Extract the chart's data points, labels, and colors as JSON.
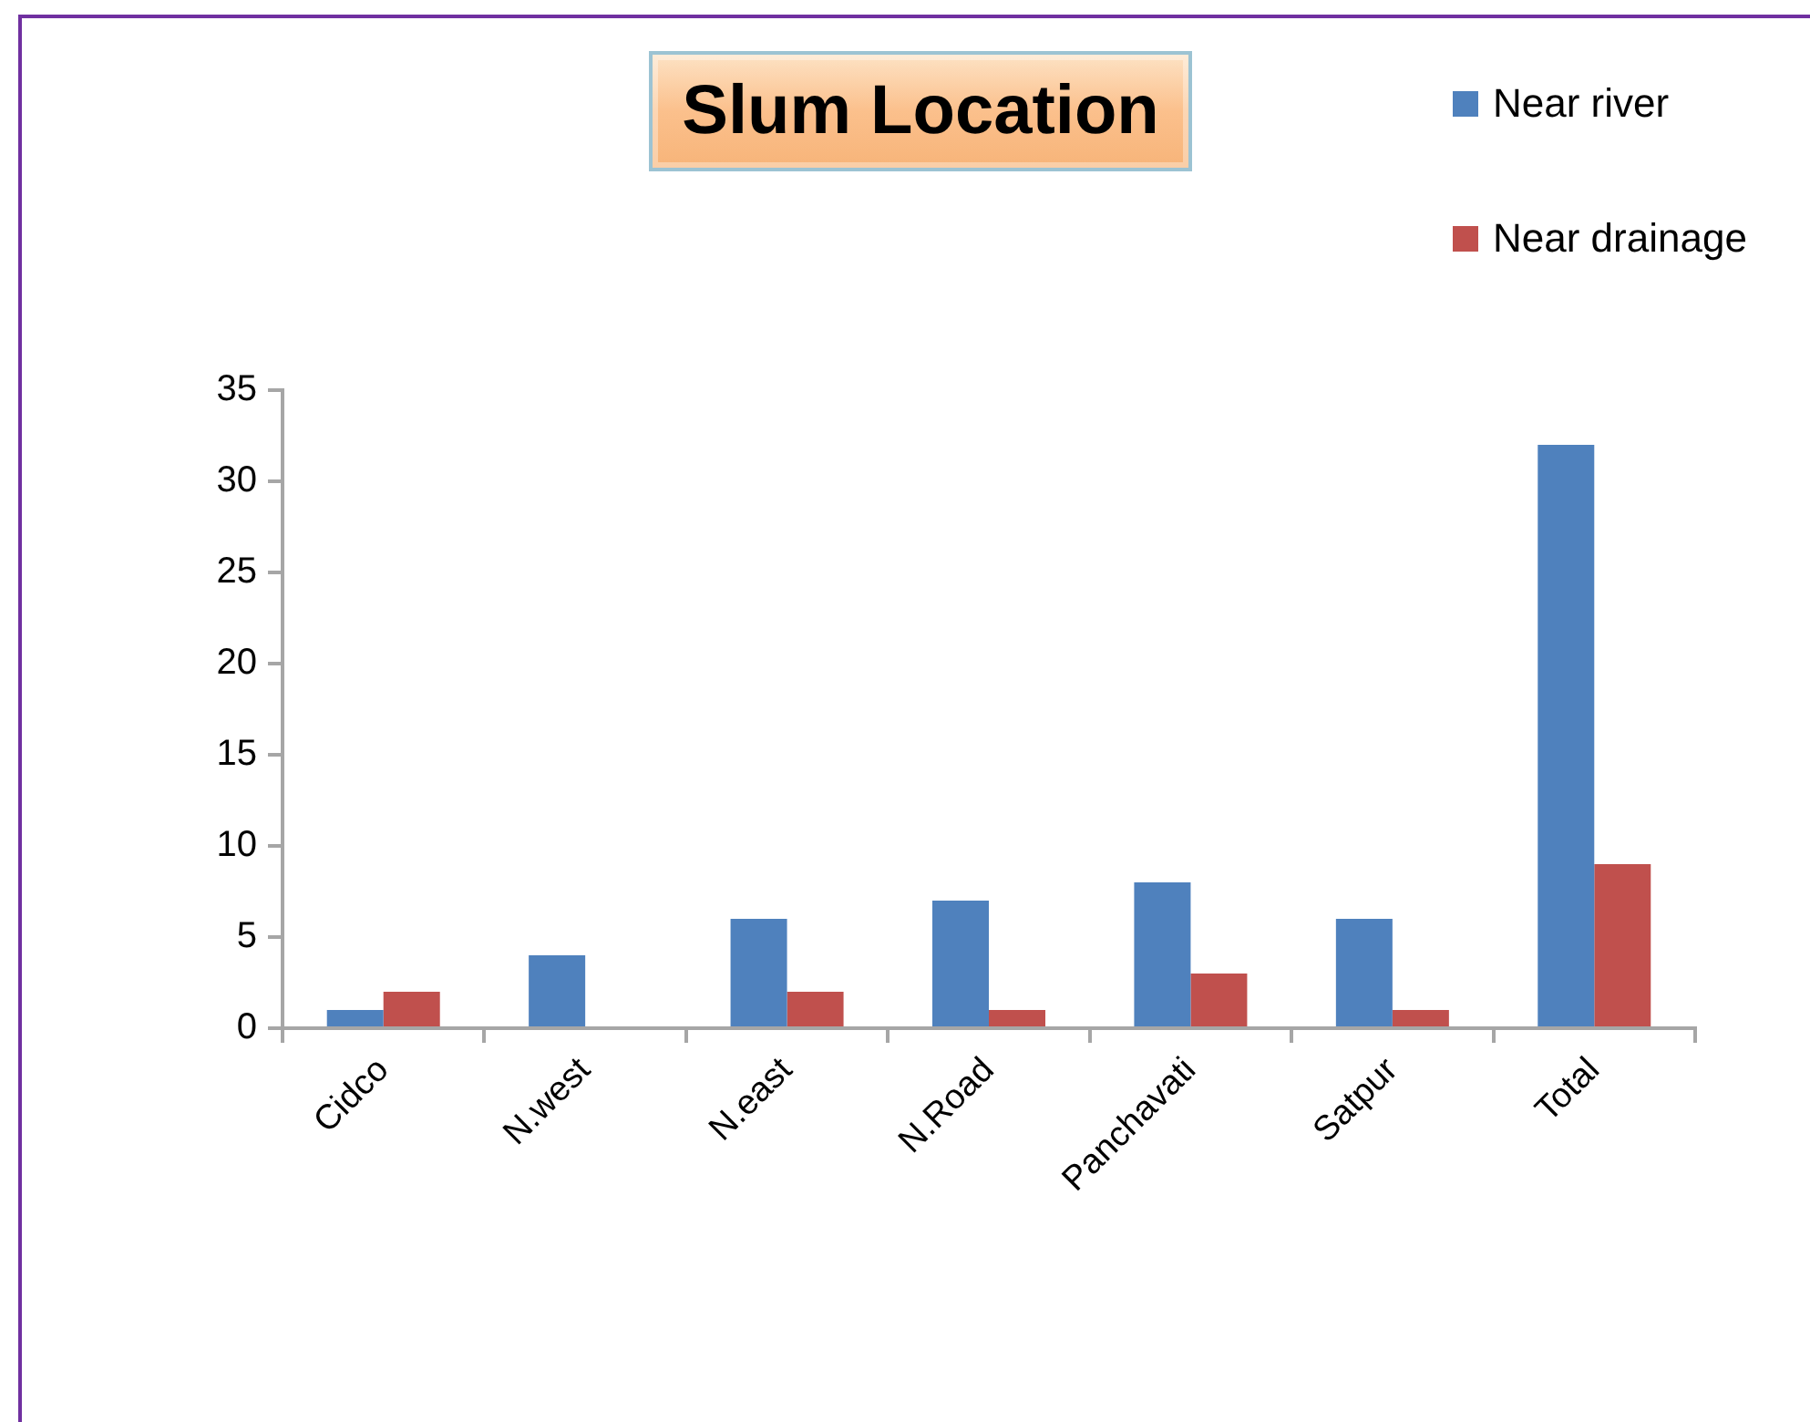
{
  "chart_data": {
    "type": "bar",
    "title": "Slum Location",
    "categories": [
      "Cidco",
      "N.west",
      "N.east",
      "N.Road",
      "Panchavati",
      "Satpur",
      "Total"
    ],
    "series": [
      {
        "name": "Near river",
        "color": "#4f81bd",
        "values": [
          1,
          4,
          6,
          7,
          8,
          6,
          32
        ]
      },
      {
        "name": "Near drainage",
        "color": "#c0504d",
        "values": [
          2,
          0,
          2,
          1,
          3,
          1,
          9
        ]
      }
    ],
    "ylim": [
      0,
      35
    ],
    "yticks": [
      0,
      5,
      10,
      15,
      20,
      25,
      30,
      35
    ],
    "grid": false,
    "legend": "top right"
  }
}
